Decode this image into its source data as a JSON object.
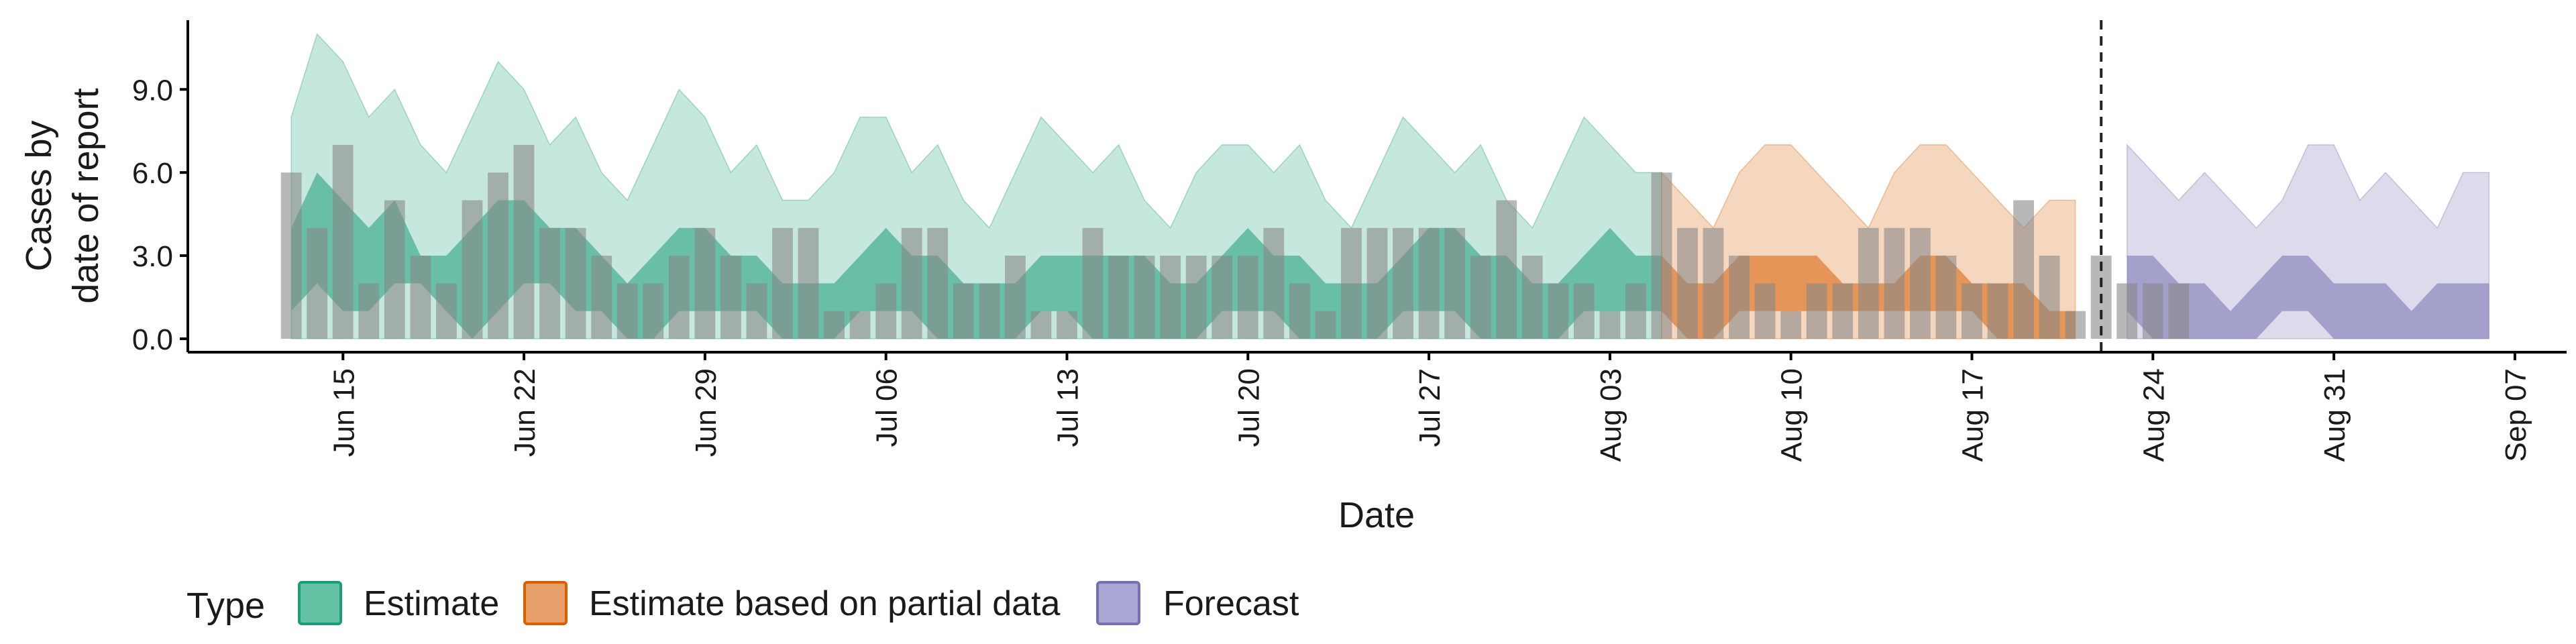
{
  "chart_data": {
    "type": "area",
    "xlabel": "Date",
    "ylabel": "Cases by date of report",
    "ylabel_lines": [
      "Cases by",
      "date of report"
    ],
    "ylim": [
      0,
      11.5
    ],
    "y_ticks": [
      0,
      3,
      6,
      9
    ],
    "y_tick_labels": [
      "0.0",
      "3.0",
      "6.0",
      "9.0"
    ],
    "x_range": [
      "2020-06-09",
      "2020-09-09"
    ],
    "x_ticks": [
      "2020-06-15",
      "2020-06-22",
      "2020-06-29",
      "2020-07-06",
      "2020-07-13",
      "2020-07-20",
      "2020-07-27",
      "2020-08-03",
      "2020-08-10",
      "2020-08-17",
      "2020-08-24",
      "2020-08-31",
      "2020-09-07"
    ],
    "x_tick_labels": [
      "Jun 15",
      "Jun 22",
      "Jun 29",
      "Jul 06",
      "Jul 13",
      "Jul 20",
      "Jul 27",
      "Aug 03",
      "Aug 10",
      "Aug 17",
      "Aug 24",
      "Aug 31",
      "Sep 07"
    ],
    "vline_date": "2020-08-22",
    "grid": false,
    "legend": {
      "position": "bottom",
      "title": "Type",
      "entries": [
        {
          "label": "Estimate",
          "fill": "#66c2a5",
          "stroke": "#1b9e77"
        },
        {
          "label": "Estimate based on partial data",
          "fill": "#e7a06a",
          "stroke": "#d95f02"
        },
        {
          "label": "Forecast",
          "fill": "#a9a6d3",
          "stroke": "#7570b3"
        }
      ]
    },
    "colors": {
      "estimate": "#1b9e77",
      "partial": "#d95f02",
      "forecast": "#7570b3",
      "bars": "#888888",
      "vline": "#222222"
    },
    "reported_cases": {
      "start": "2020-06-13",
      "values": [
        6,
        4,
        7,
        2,
        5,
        3,
        2,
        5,
        6,
        7,
        4,
        4,
        3,
        2,
        2,
        3,
        4,
        3,
        2,
        4,
        4,
        1,
        1,
        2,
        4,
        4,
        2,
        2,
        3,
        1,
        1,
        4,
        3,
        3,
        3,
        3,
        3,
        3,
        4,
        2,
        1,
        4,
        4,
        4,
        4,
        4,
        3,
        5,
        3,
        2,
        2,
        1,
        2,
        6,
        4,
        4,
        3,
        2,
        1,
        2,
        2,
        4,
        4,
        4,
        3,
        2,
        2,
        5,
        3,
        1,
        3,
        2,
        2,
        2
      ]
    },
    "series": [
      {
        "name": "Estimate",
        "start": "2020-06-13",
        "lower_90": [
          0,
          0,
          0,
          0,
          0,
          0,
          0,
          0,
          0,
          0,
          0,
          0,
          0,
          0,
          0,
          0,
          0,
          0,
          0,
          0,
          0,
          0,
          0,
          0,
          0,
          0,
          0,
          0,
          0,
          0,
          0,
          0,
          0,
          0,
          0,
          0,
          0,
          0,
          0,
          0,
          0,
          0,
          0,
          0,
          0,
          0,
          0,
          0,
          0,
          0,
          0,
          0,
          0,
          0
        ],
        "upper_90": [
          8,
          11,
          10,
          8,
          9,
          7,
          6,
          8,
          10,
          9,
          7,
          8,
          6,
          5,
          7,
          9,
          8,
          6,
          7,
          5,
          5,
          6,
          8,
          8,
          6,
          7,
          5,
          4,
          6,
          8,
          7,
          6,
          7,
          5,
          4,
          6,
          7,
          7,
          6,
          7,
          5,
          4,
          6,
          8,
          7,
          6,
          7,
          5,
          4,
          6,
          8,
          7,
          6,
          6
        ],
        "lower_50": [
          1,
          2,
          1,
          1,
          2,
          2,
          1,
          0,
          1,
          2,
          2,
          1,
          1,
          0,
          0,
          1,
          1,
          1,
          1,
          0,
          0,
          0,
          1,
          1,
          1,
          0,
          0,
          0,
          0,
          1,
          1,
          0,
          0,
          0,
          0,
          0,
          1,
          1,
          1,
          0,
          0,
          0,
          0,
          1,
          1,
          1,
          0,
          0,
          0,
          0,
          1,
          1,
          1,
          1
        ],
        "upper_50": [
          4,
          6,
          5,
          4,
          5,
          3,
          3,
          4,
          5,
          5,
          4,
          4,
          3,
          2,
          3,
          4,
          4,
          3,
          3,
          2,
          2,
          2,
          3,
          4,
          3,
          3,
          2,
          2,
          2,
          3,
          3,
          3,
          3,
          3,
          2,
          2,
          3,
          4,
          3,
          3,
          2,
          2,
          2,
          3,
          4,
          4,
          3,
          3,
          2,
          2,
          3,
          4,
          3,
          3
        ]
      },
      {
        "name": "Estimate based on partial data",
        "start": "2020-08-05",
        "lower_90": [
          0,
          0,
          0,
          0,
          0,
          0,
          0,
          0,
          0,
          0,
          0,
          0,
          0,
          0,
          0,
          0,
          0
        ],
        "upper_90": [
          6,
          5,
          4,
          6,
          7,
          7,
          6,
          5,
          4,
          6,
          7,
          7,
          6,
          5,
          4,
          5,
          5
        ],
        "lower_50": [
          1,
          0,
          0,
          1,
          1,
          1,
          1,
          1,
          1,
          1,
          1,
          1,
          1,
          0,
          0,
          0,
          0
        ],
        "upper_50": [
          3,
          2,
          2,
          3,
          3,
          3,
          3,
          2,
          2,
          2,
          3,
          3,
          2,
          2,
          2,
          1,
          1
        ]
      },
      {
        "name": "Forecast",
        "start": "2020-08-23",
        "lower_90": [
          0,
          0,
          0,
          0,
          0,
          0,
          0,
          0,
          0,
          0,
          0,
          0,
          0,
          0,
          0
        ],
        "upper_90": [
          7,
          6,
          5,
          6,
          5,
          4,
          5,
          7,
          7,
          5,
          6,
          5,
          4,
          6,
          6
        ],
        "lower_50": [
          1,
          0,
          0,
          0,
          0,
          0,
          1,
          1,
          0,
          0,
          0,
          0,
          0,
          0,
          0
        ],
        "upper_50": [
          3,
          3,
          2,
          2,
          1,
          2,
          3,
          3,
          2,
          2,
          2,
          1,
          2,
          2,
          2
        ]
      }
    ]
  }
}
